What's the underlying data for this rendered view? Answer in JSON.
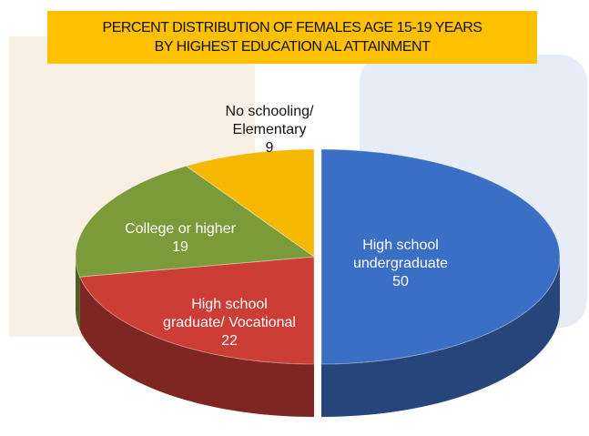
{
  "chart_data": {
    "type": "pie",
    "title": "PERCENT DISTRIBUTION  OF FEMALES AGE 15-19 YEARS\nBY HIGHEST EDUCATION AL ATTAINMENT",
    "categories": [
      "High school\nundergraduate",
      "High school\ngraduate/ Vocational",
      "College or higher",
      "No schooling/\nElementary"
    ],
    "values": [
      50,
      22,
      19,
      9
    ],
    "colors": [
      "#3b6fc6",
      "#cc3d36",
      "#7b9b3b",
      "#f6b800"
    ]
  }
}
